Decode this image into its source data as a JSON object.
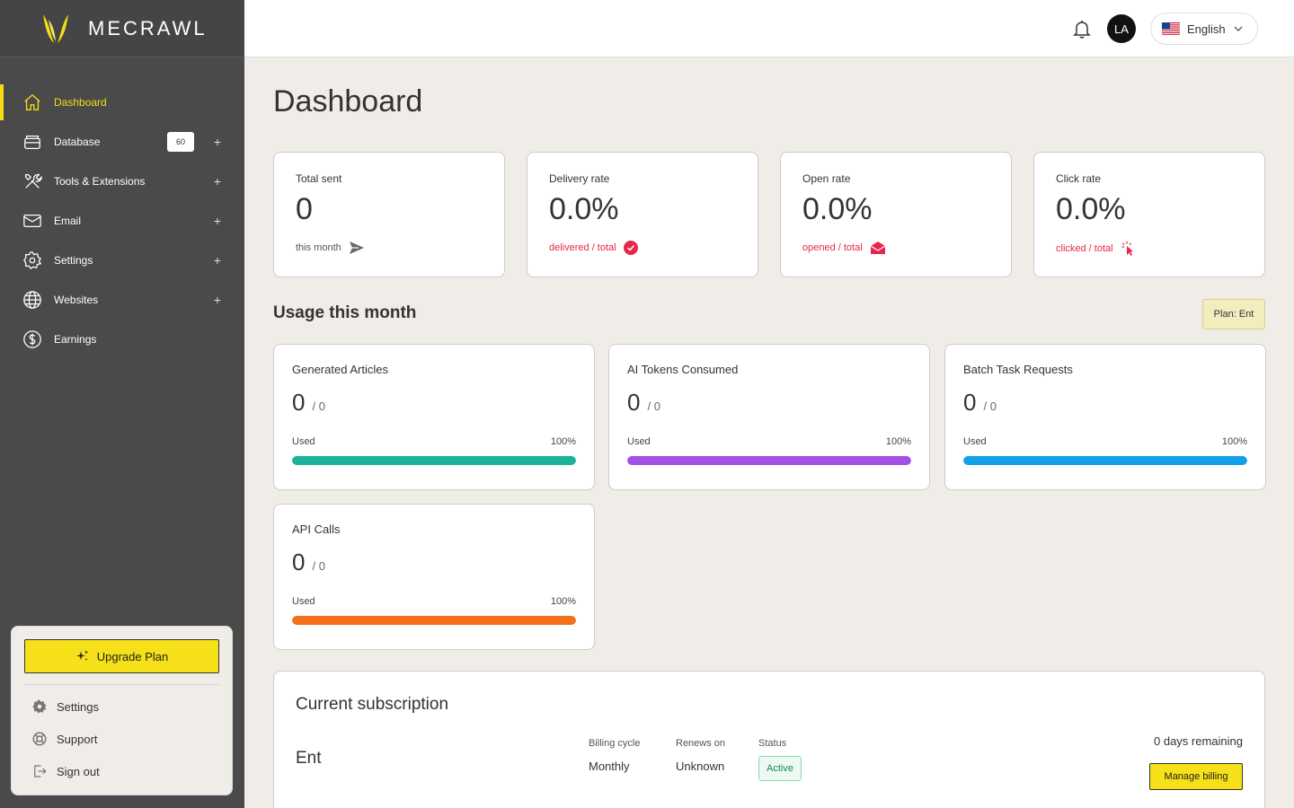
{
  "brand": {
    "name": "MECRAWL"
  },
  "sidebar": {
    "items": [
      {
        "label": "Dashboard",
        "icon": "home-icon",
        "active": true
      },
      {
        "label": "Database",
        "icon": "database-icon",
        "badge": "60",
        "expandable": true
      },
      {
        "label": "Tools & Extensions",
        "icon": "tools-icon",
        "expandable": true
      },
      {
        "label": "Email",
        "icon": "mail-icon",
        "expandable": true
      },
      {
        "label": "Settings",
        "icon": "gear-icon",
        "expandable": true
      },
      {
        "label": "Websites",
        "icon": "globe-icon",
        "expandable": true
      },
      {
        "label": "Earnings",
        "icon": "dollar-icon"
      }
    ],
    "plus": "+",
    "upgrade_label": "Upgrade Plan",
    "footer_links": [
      {
        "label": "Settings",
        "icon": "gear-icon"
      },
      {
        "label": "Support",
        "icon": "lifebuoy-icon"
      },
      {
        "label": "Sign out",
        "icon": "sign-out-icon"
      }
    ]
  },
  "topbar": {
    "avatar_initials": "LA",
    "language": "English"
  },
  "page": {
    "title": "Dashboard"
  },
  "stats": [
    {
      "label": "Total sent",
      "value": "0",
      "sub": "this month",
      "sub_style": "gray",
      "icon": "send-icon"
    },
    {
      "label": "Delivery rate",
      "value": "0.0%",
      "sub": "delivered / total",
      "sub_style": "red",
      "icon": "check-circle-icon"
    },
    {
      "label": "Open rate",
      "value": "0.0%",
      "sub": "opened / total",
      "sub_style": "red",
      "icon": "open-envelope-icon"
    },
    {
      "label": "Click rate",
      "value": "0.0%",
      "sub": "clicked / total",
      "sub_style": "red",
      "icon": "pointer-click-icon"
    }
  ],
  "usage": {
    "title": "Usage this month",
    "plan_badge": "Plan: Ent",
    "used_label": "Used",
    "cards": [
      {
        "label": "Generated Articles",
        "value": "0",
        "total": "/ 0",
        "percent": "100%",
        "fill": 1.0,
        "color": "#1db39a"
      },
      {
        "label": "AI Tokens Consumed",
        "value": "0",
        "total": "/ 0",
        "percent": "100%",
        "fill": 1.0,
        "color": "#a251e8"
      },
      {
        "label": "Batch Task Requests",
        "value": "0",
        "total": "/ 0",
        "percent": "100%",
        "fill": 1.0,
        "color": "#12a0e8"
      },
      {
        "label": "API Calls",
        "value": "0",
        "total": "/ 0",
        "percent": "100%",
        "fill": 1.0,
        "color": "#f4701b"
      }
    ]
  },
  "subscription": {
    "title": "Current subscription",
    "plan": "Ent",
    "billing_cycle_label": "Billing cycle",
    "billing_cycle": "Monthly",
    "renews_label": "Renews on",
    "renews": "Unknown",
    "status_label": "Status",
    "status": "Active",
    "days_remaining": "0 days remaining",
    "manage_label": "Manage billing"
  },
  "colors": {
    "accent": "#f5dc14",
    "sidebar_bg": "#4a4a4a",
    "page_bg": "#f0ece8",
    "alert": "#e8264a"
  }
}
